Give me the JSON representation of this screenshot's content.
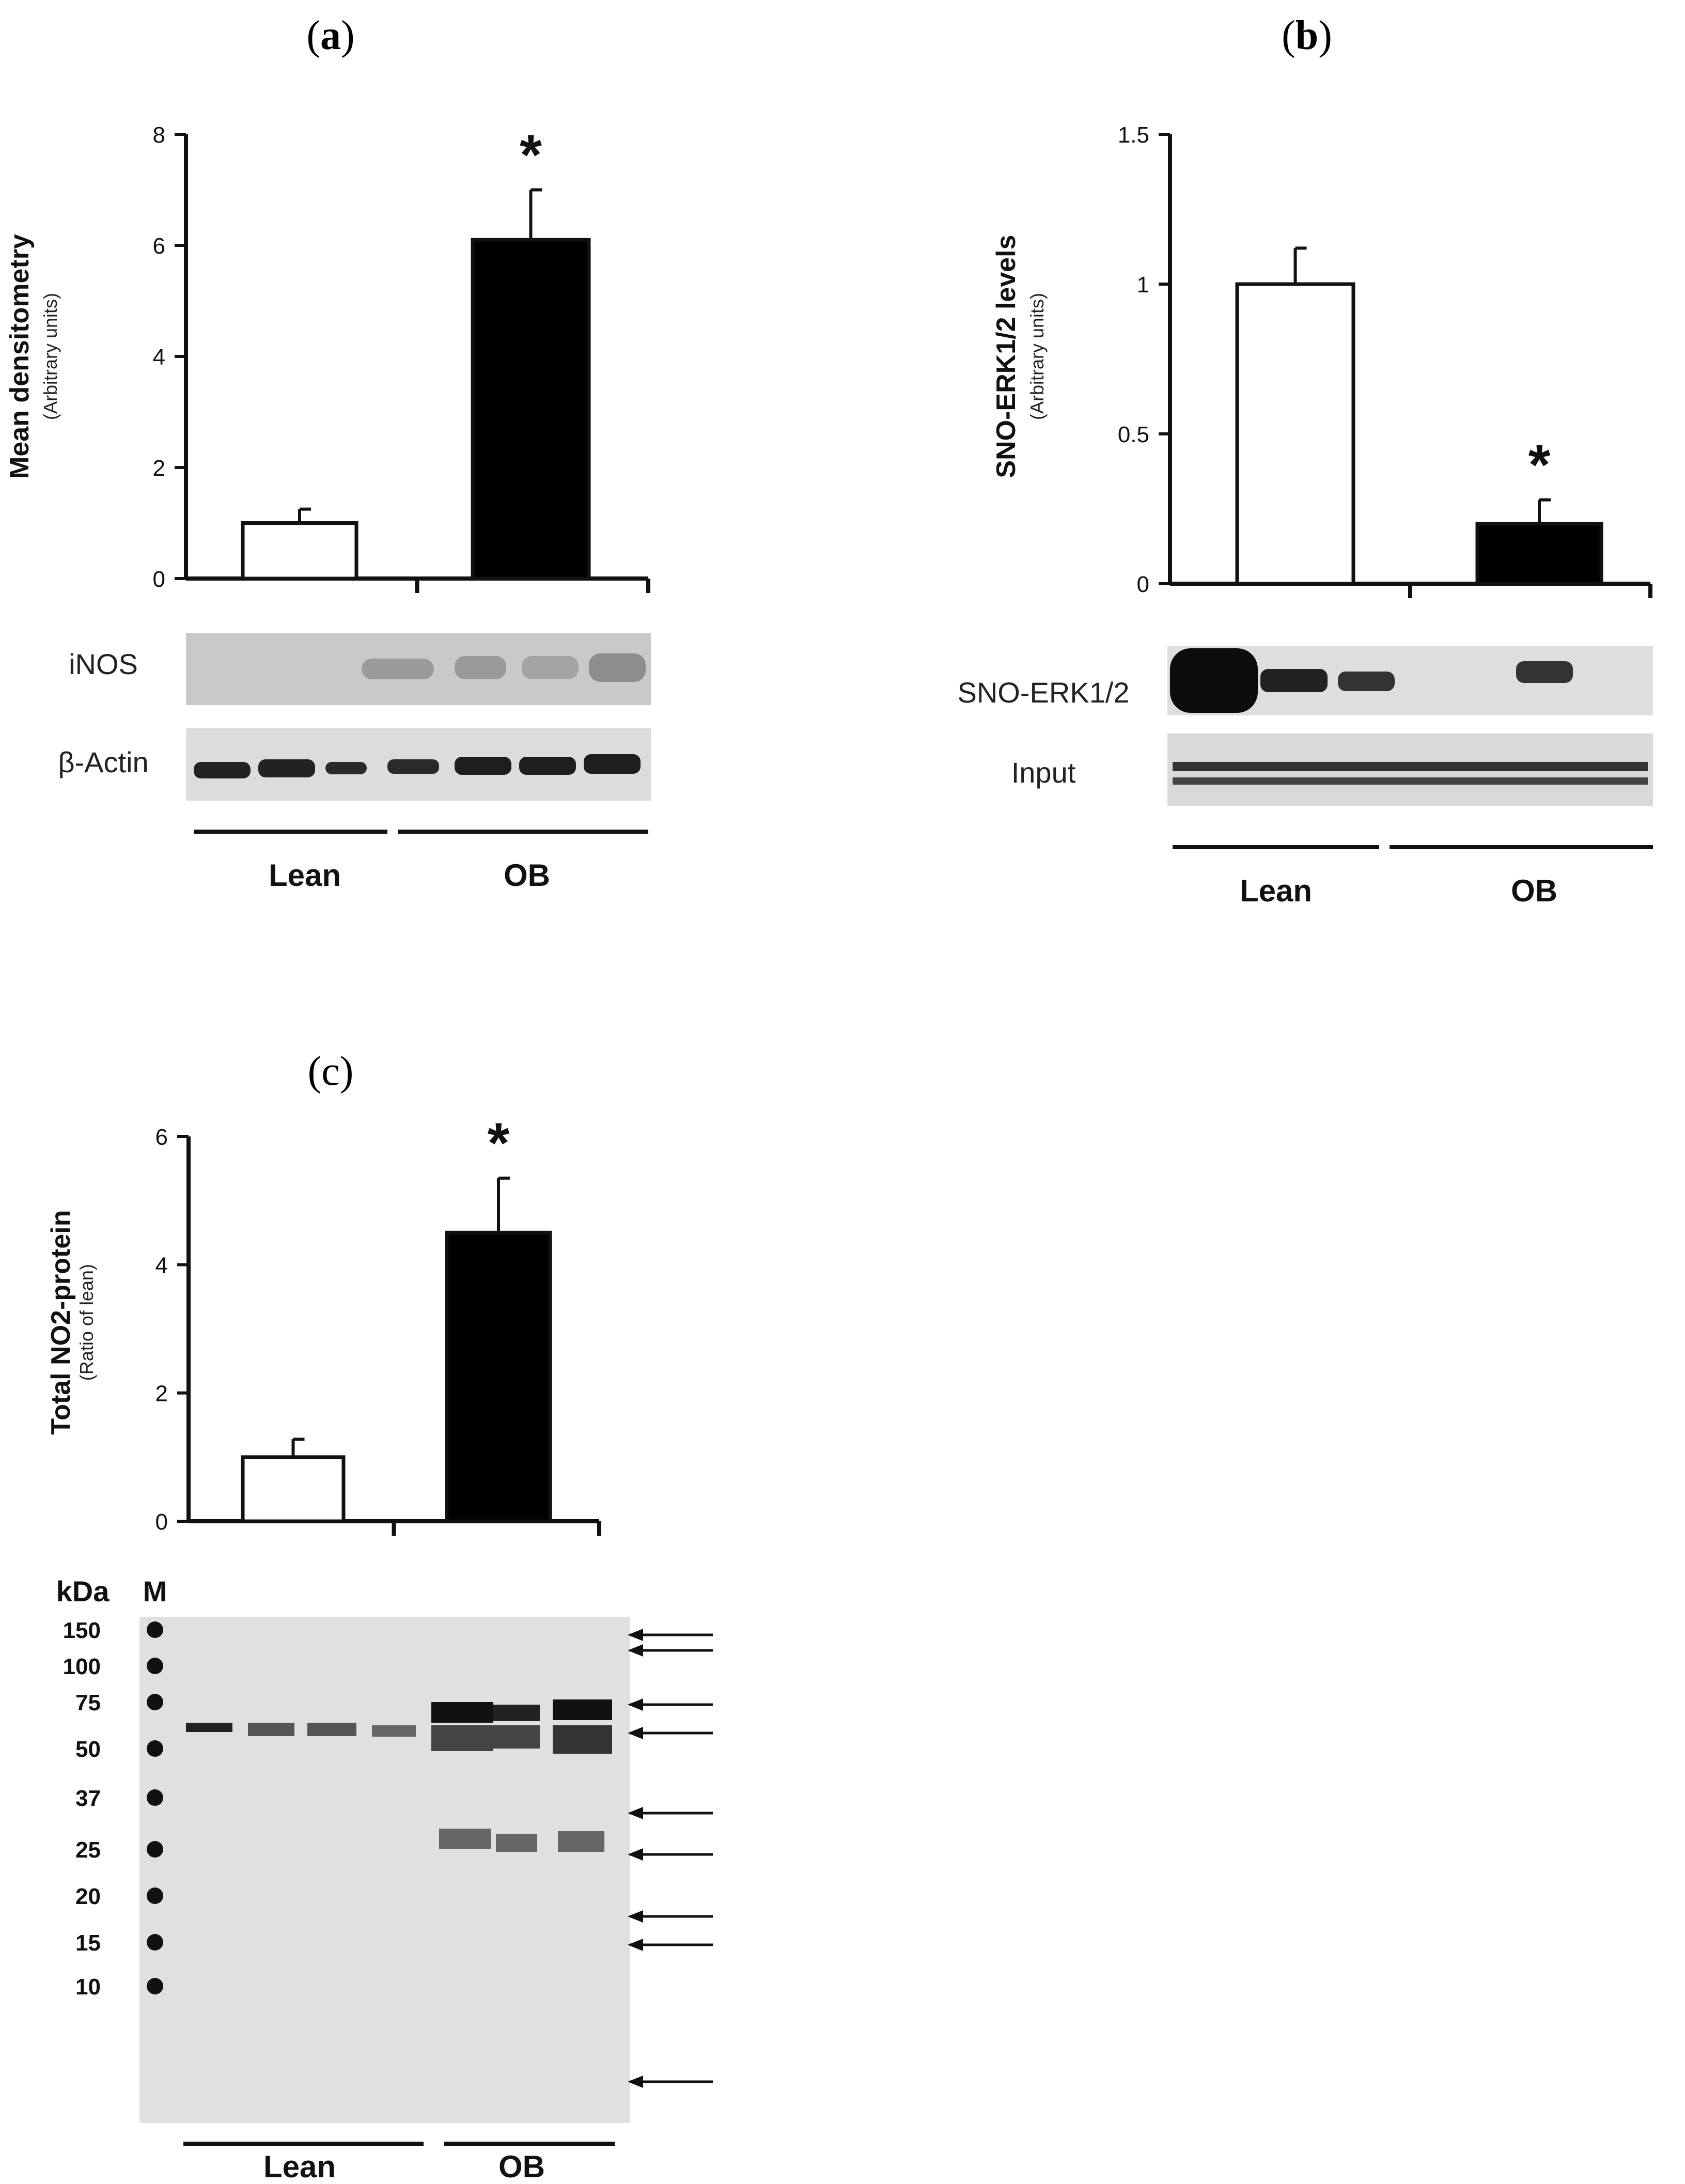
{
  "chart_data": [
    {
      "type": "bar",
      "panel": "(a)",
      "categories": [
        "Lean",
        "OB"
      ],
      "values": [
        1.0,
        6.1
      ],
      "errors": [
        0.25,
        0.9
      ],
      "colors": [
        "#ffffff",
        "#000000"
      ],
      "significance": [
        "",
        "*"
      ],
      "ylabel": "Mean densitometry",
      "ylabel_sub": "(Arbitrary units)",
      "ylim": [
        0,
        8
      ],
      "yticks": [
        "0",
        "2",
        "4",
        "6",
        "8"
      ],
      "blots": [
        "iNOS",
        "β-Actin"
      ],
      "groups": [
        "Lean",
        "OB"
      ]
    },
    {
      "type": "bar",
      "panel": "(b)",
      "categories": [
        "Lean",
        "OB"
      ],
      "values": [
        1.0,
        0.2
      ],
      "errors": [
        0.12,
        0.08
      ],
      "colors": [
        "#ffffff",
        "#000000"
      ],
      "significance": [
        "",
        "*"
      ],
      "ylabel": "SNO-ERK1/2 levels",
      "ylabel_sub": "(Arbitrary units)",
      "ylim": [
        0,
        1.5
      ],
      "yticks": [
        "0",
        "0.5",
        "1",
        "1.5"
      ],
      "blots": [
        "SNO-ERK1/2",
        "Input"
      ],
      "groups": [
        "Lean",
        "OB"
      ]
    },
    {
      "type": "bar",
      "panel": "(c)",
      "categories": [
        "Lean",
        "OB"
      ],
      "values": [
        1.0,
        4.5
      ],
      "errors": [
        0.28,
        0.85
      ],
      "colors": [
        "#ffffff",
        "#000000"
      ],
      "significance": [
        "",
        "*"
      ],
      "ylabel": "Total NO2-protein",
      "ylabel_sub": "(Ratio of lean)",
      "ylim": [
        0,
        6
      ],
      "yticks": [
        "0",
        "2",
        "4",
        "6"
      ],
      "blot_header": [
        "kDa",
        "M"
      ],
      "markers_kda": [
        "150",
        "100",
        "75",
        "50",
        "37",
        "25",
        "20",
        "15",
        "10"
      ],
      "groups": [
        "Lean",
        "OB"
      ]
    }
  ],
  "labels": {
    "a": "a",
    "b": "b",
    "c": "(c)"
  }
}
